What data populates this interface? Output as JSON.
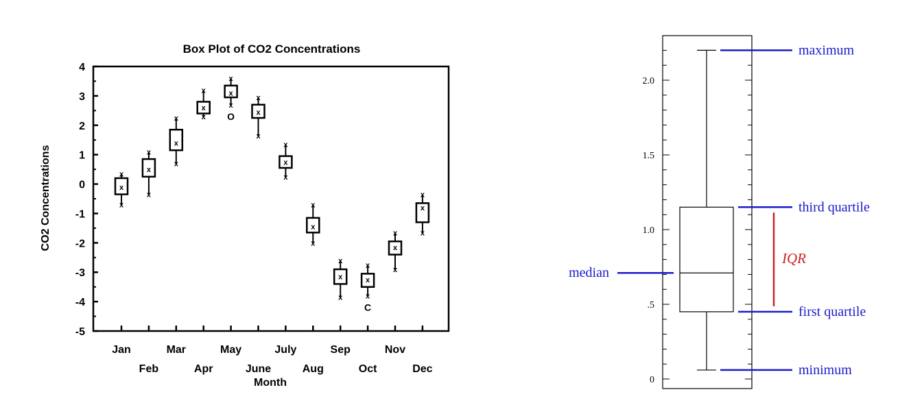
{
  "chart_data": [
    {
      "type": "box",
      "title": "Box Plot of CO2 Concentrations",
      "xlabel": "Month",
      "ylabel": "CO2 Concentrations",
      "ylim": [
        -5,
        4
      ],
      "yticks": [
        "4",
        "3",
        "2",
        "1",
        "0",
        "-1",
        "-2",
        "-3",
        "-4",
        "-5"
      ],
      "boxes": [
        {
          "label": "Jan",
          "min": -0.7,
          "q1": -0.35,
          "median": -0.1,
          "q3": 0.2,
          "max": 0.35,
          "outliers": []
        },
        {
          "label": "Feb",
          "min": -0.35,
          "q1": 0.25,
          "median": 0.5,
          "q3": 0.85,
          "max": 1.1,
          "outliers": []
        },
        {
          "label": "Mar",
          "min": 0.7,
          "q1": 1.15,
          "median": 1.4,
          "q3": 1.85,
          "max": 2.25,
          "outliers": []
        },
        {
          "label": "Apr",
          "min": 2.3,
          "q1": 2.4,
          "median": 2.6,
          "q3": 2.8,
          "max": 3.2,
          "outliers": []
        },
        {
          "label": "May",
          "min": 2.7,
          "q1": 2.95,
          "median": 3.1,
          "q3": 3.35,
          "max": 3.6,
          "outliers": [
            "O"
          ]
        },
        {
          "label": "June",
          "min": 1.65,
          "q1": 2.25,
          "median": 2.45,
          "q3": 2.7,
          "max": 2.95,
          "outliers": []
        },
        {
          "label": "July",
          "min": 0.25,
          "q1": 0.55,
          "median": 0.75,
          "q3": 0.95,
          "max": 1.35,
          "outliers": []
        },
        {
          "label": "Aug",
          "min": -2.0,
          "q1": -1.65,
          "median": -1.45,
          "q3": -1.15,
          "max": -0.7,
          "outliers": []
        },
        {
          "label": "Sep",
          "min": -3.85,
          "q1": -3.4,
          "median": -3.15,
          "q3": -2.9,
          "max": -2.6,
          "outliers": []
        },
        {
          "label": "Oct",
          "min": -3.8,
          "q1": -3.5,
          "median": -3.25,
          "q3": -3.05,
          "max": -2.75,
          "outliers": [
            "C"
          ]
        },
        {
          "label": "Nov",
          "min": -2.9,
          "q1": -2.4,
          "median": -2.15,
          "q3": -1.95,
          "max": -1.65,
          "outliers": []
        },
        {
          "label": "Dec",
          "min": -1.65,
          "q1": -1.3,
          "median": -0.8,
          "q3": -0.65,
          "max": -0.35,
          "outliers": []
        }
      ]
    },
    {
      "type": "box",
      "ylim": [
        0,
        2.3
      ],
      "yticks": [
        "2.0",
        "1.5",
        "1.0",
        ".5",
        "0"
      ],
      "ytick_values": [
        2.0,
        1.5,
        1.0,
        0.5,
        0.0
      ],
      "box": {
        "min": 0.06,
        "q1": 0.45,
        "median": 0.71,
        "q3": 1.15,
        "max": 2.2
      },
      "annotations": {
        "maximum": "maximum",
        "third_quartile": "third quartile",
        "median": "median",
        "first_quartile": "first quartile",
        "minimum": "minimum",
        "iqr": "IQR"
      },
      "colors": {
        "annotation": "#1a1acc",
        "iqr": "#cc2222"
      }
    }
  ]
}
